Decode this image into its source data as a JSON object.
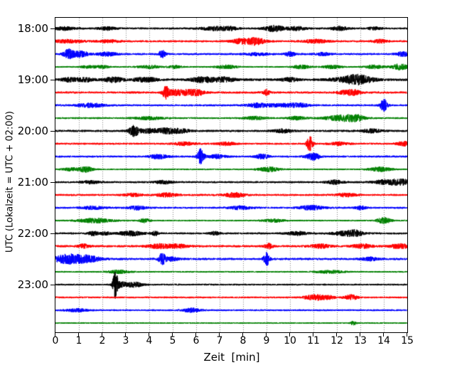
{
  "chart_data": {
    "type": "line",
    "kind": "seismogram-helicorder",
    "xlabel": "Zeit  [min]",
    "ylabel": "UTC (Lokalzeit = UTC + 02:00)",
    "xlim": [
      0,
      15
    ],
    "minutes_per_row": 15,
    "grid": "vertical-dotted",
    "grid_color": "#808080",
    "background": "#ffffff",
    "spine_color": "#000000",
    "text_color": "#000000",
    "colors_cycle": [
      "#000000",
      "#ff0000",
      "#0000ff",
      "#008000"
    ],
    "x_ticks": [
      "0",
      "1",
      "2",
      "3",
      "4",
      "5",
      "6",
      "7",
      "8",
      "9",
      "10",
      "11",
      "12",
      "13",
      "14",
      "15"
    ],
    "hour_labels": [
      {
        "text": "18:00",
        "row": 0
      },
      {
        "text": "19:00",
        "row": 4
      },
      {
        "text": "20:00",
        "row": 8
      },
      {
        "text": "21:00",
        "row": 12
      },
      {
        "text": "22:00",
        "row": 16
      },
      {
        "text": "23:00",
        "row": 20
      }
    ],
    "traces": [
      {
        "label": "18:00",
        "color": "#000000",
        "noise": 1.3,
        "events": [
          [
            0.4,
            2,
            0.3
          ],
          [
            2.2,
            2,
            0.25
          ],
          [
            6.8,
            2.6,
            0.4
          ],
          [
            7.5,
            2,
            0.2
          ],
          [
            9.35,
            4,
            0.3
          ],
          [
            10.3,
            2.4,
            0.25
          ],
          [
            12.1,
            2.5,
            0.25
          ],
          [
            13.6,
            1.8,
            0.2
          ]
        ]
      },
      {
        "label": "18:15",
        "color": "#ff0000",
        "noise": 1.3,
        "events": [
          [
            0.5,
            2,
            0.5
          ],
          [
            2.3,
            1.8,
            0.3
          ],
          [
            7.8,
            2,
            0.25
          ],
          [
            8.35,
            3,
            0.4
          ],
          [
            8.6,
            2.5,
            0.2
          ],
          [
            11.1,
            2.2,
            0.35
          ],
          [
            13.85,
            2.2,
            0.2
          ]
        ]
      },
      {
        "label": "18:30",
        "color": "#0000ff",
        "noise": 1.3,
        "events": [
          [
            0.55,
            6,
            0.15
          ],
          [
            0.95,
            3,
            0.2
          ],
          [
            1.2,
            2.5,
            0.15
          ],
          [
            2.2,
            2.5,
            0.3
          ],
          [
            4.55,
            5,
            0.1
          ],
          [
            8.6,
            1.8,
            0.3
          ],
          [
            10.0,
            2.8,
            0.15
          ],
          [
            11.4,
            2,
            0.2
          ],
          [
            14.8,
            3,
            0.2
          ]
        ]
      },
      {
        "label": "18:45",
        "color": "#008000",
        "noise": 1.1,
        "events": [
          [
            1.4,
            1.8,
            0.2
          ],
          [
            2.0,
            1.8,
            0.2
          ],
          [
            4.0,
            2,
            0.3
          ],
          [
            5.1,
            1.8,
            0.2
          ],
          [
            7.3,
            2.2,
            0.3
          ],
          [
            10.5,
            2.4,
            0.25
          ],
          [
            11.8,
            2.2,
            0.25
          ],
          [
            13.6,
            2.6,
            0.25
          ],
          [
            14.7,
            4,
            0.25
          ]
        ]
      },
      {
        "label": "19:00",
        "color": "#000000",
        "noise": 1.6,
        "events": [
          [
            0.6,
            2.5,
            0.25
          ],
          [
            1.3,
            2.2,
            0.25
          ],
          [
            2.5,
            3,
            0.3
          ],
          [
            3.6,
            2.5,
            0.2
          ],
          [
            4.1,
            2.5,
            0.2
          ],
          [
            6.3,
            3.5,
            0.35
          ],
          [
            7.2,
            3,
            0.3
          ],
          [
            10.0,
            2.2,
            0.25
          ],
          [
            12.4,
            2.5,
            0.5
          ],
          [
            12.8,
            4.2,
            0.3
          ],
          [
            13.3,
            2.5,
            0.3
          ]
        ]
      },
      {
        "label": "19:15",
        "color": "#ff0000",
        "noise": 1.4,
        "events": [
          [
            4.7,
            8,
            0.1
          ],
          [
            5.05,
            3,
            0.2
          ],
          [
            5.6,
            3.5,
            0.3
          ],
          [
            6.1,
            3,
            0.2
          ],
          [
            9.0,
            3.5,
            0.1
          ],
          [
            12.4,
            2.6,
            0.25
          ],
          [
            12.75,
            2.5,
            0.2
          ]
        ]
      },
      {
        "label": "19:30",
        "color": "#0000ff",
        "noise": 1.3,
        "events": [
          [
            1.5,
            2.6,
            0.4
          ],
          [
            8.6,
            2.5,
            0.3
          ],
          [
            9.6,
            2,
            0.5
          ],
          [
            10.4,
            2,
            0.3
          ],
          [
            14.0,
            9,
            0.1
          ]
        ]
      },
      {
        "label": "19:45",
        "color": "#008000",
        "noise": 1.2,
        "events": [
          [
            4.0,
            2,
            0.4
          ],
          [
            8.5,
            2,
            0.3
          ],
          [
            10.3,
            2.2,
            0.25
          ],
          [
            12.0,
            2.8,
            0.4
          ],
          [
            12.55,
            3,
            0.3
          ],
          [
            12.95,
            2.6,
            0.2
          ]
        ]
      },
      {
        "label": "20:00",
        "color": "#000000",
        "noise": 1.4,
        "events": [
          [
            3.35,
            7,
            0.15
          ],
          [
            3.95,
            2.5,
            0.25
          ],
          [
            4.75,
            3.5,
            0.35
          ],
          [
            5.4,
            2,
            0.25
          ],
          [
            9.7,
            2.2,
            0.3
          ],
          [
            13.5,
            2.2,
            0.3
          ]
        ]
      },
      {
        "label": "20:15",
        "color": "#ff0000",
        "noise": 1.3,
        "events": [
          [
            5.5,
            2,
            0.3
          ],
          [
            7.3,
            2,
            0.25
          ],
          [
            10.85,
            10,
            0.09
          ],
          [
            12.1,
            2,
            0.25
          ],
          [
            14.85,
            3,
            0.2
          ]
        ]
      },
      {
        "label": "20:30",
        "color": "#0000ff",
        "noise": 1.3,
        "events": [
          [
            4.4,
            3,
            0.25
          ],
          [
            6.2,
            11,
            0.1
          ],
          [
            6.9,
            2.5,
            0.25
          ],
          [
            8.8,
            3,
            0.2
          ],
          [
            10.9,
            3,
            0.18
          ],
          [
            11.1,
            2.5,
            0.15
          ]
        ]
      },
      {
        "label": "20:45",
        "color": "#008000",
        "noise": 1.1,
        "events": [
          [
            0.7,
            2,
            0.25
          ],
          [
            1.3,
            3.5,
            0.2
          ],
          [
            9.1,
            3,
            0.3
          ],
          [
            13.85,
            3,
            0.3
          ]
        ]
      },
      {
        "label": "21:00",
        "color": "#000000",
        "noise": 1.3,
        "events": [
          [
            1.5,
            2,
            0.25
          ],
          [
            4.6,
            2.2,
            0.25
          ],
          [
            11.9,
            2.5,
            0.25
          ],
          [
            14.1,
            3,
            0.4
          ],
          [
            14.8,
            3.2,
            0.3
          ]
        ]
      },
      {
        "label": "21:15",
        "color": "#ff0000",
        "noise": 1.3,
        "events": [
          [
            3.3,
            2,
            0.25
          ],
          [
            4.75,
            2.5,
            0.3
          ],
          [
            7.65,
            3,
            0.3
          ],
          [
            12.4,
            2.2,
            0.3
          ]
        ]
      },
      {
        "label": "21:30",
        "color": "#0000ff",
        "noise": 1.3,
        "events": [
          [
            1.6,
            2,
            0.3
          ],
          [
            3.5,
            2.5,
            0.25
          ],
          [
            7.9,
            2.3,
            0.3
          ],
          [
            10.9,
            3,
            0.35
          ],
          [
            13.0,
            2.6,
            0.15
          ]
        ]
      },
      {
        "label": "21:45",
        "color": "#008000",
        "noise": 1.1,
        "events": [
          [
            1.7,
            3,
            0.5
          ],
          [
            3.8,
            2.5,
            0.15
          ],
          [
            9.3,
            2,
            0.3
          ],
          [
            14.0,
            4,
            0.2
          ]
        ]
      },
      {
        "label": "22:00",
        "color": "#000000",
        "noise": 1.3,
        "events": [
          [
            1.6,
            2.5,
            0.15
          ],
          [
            2.1,
            2,
            0.15
          ],
          [
            3.2,
            3,
            0.35
          ],
          [
            4.25,
            2.8,
            0.1
          ],
          [
            6.8,
            2.2,
            0.15
          ],
          [
            10.3,
            2.2,
            0.3
          ],
          [
            12.4,
            3,
            0.4
          ],
          [
            12.8,
            2.5,
            0.2
          ]
        ]
      },
      {
        "label": "22:15",
        "color": "#ff0000",
        "noise": 1.4,
        "events": [
          [
            1.2,
            2.5,
            0.15
          ],
          [
            4.5,
            2.8,
            0.4
          ],
          [
            5.3,
            2,
            0.25
          ],
          [
            9.1,
            3.5,
            0.12
          ],
          [
            11.3,
            2.5,
            0.3
          ],
          [
            13.1,
            2.6,
            0.3
          ],
          [
            14.7,
            3,
            0.3
          ]
        ]
      },
      {
        "label": "22:30",
        "color": "#0000ff",
        "noise": 1.4,
        "events": [
          [
            0.45,
            6,
            0.35
          ],
          [
            1.1,
            4,
            0.3
          ],
          [
            1.6,
            2.5,
            0.3
          ],
          [
            4.55,
            8,
            0.1
          ],
          [
            4.95,
            2.5,
            0.2
          ],
          [
            9.0,
            9,
            0.09
          ],
          [
            13.4,
            2.2,
            0.25
          ]
        ]
      },
      {
        "label": "22:45",
        "color": "#008000",
        "noise": 1.1,
        "events": [
          [
            2.7,
            2.2,
            0.3
          ],
          [
            11.7,
            1.8,
            0.4
          ]
        ]
      },
      {
        "label": "23:00",
        "color": "#000000",
        "noise": 1.2,
        "events": [
          [
            2.55,
            17,
            0.07
          ],
          [
            2.75,
            4,
            0.15
          ],
          [
            3.2,
            2.5,
            0.2
          ],
          [
            3.5,
            2,
            0.2
          ]
        ]
      },
      {
        "label": "23:15",
        "color": "#ff0000",
        "noise": 1.2,
        "events": [
          [
            10.9,
            2.5,
            0.25
          ],
          [
            11.3,
            2.5,
            0.2
          ],
          [
            11.7,
            2,
            0.15
          ],
          [
            12.6,
            3.5,
            0.18
          ]
        ]
      },
      {
        "label": "23:30",
        "color": "#0000ff",
        "noise": 1.2,
        "events": [
          [
            0.9,
            2,
            0.3
          ],
          [
            5.8,
            2.6,
            0.25
          ]
        ]
      },
      {
        "label": "23:45",
        "color": "#008000",
        "noise": 1.0,
        "events": [
          [
            12.7,
            2.5,
            0.08
          ]
        ]
      }
    ]
  }
}
